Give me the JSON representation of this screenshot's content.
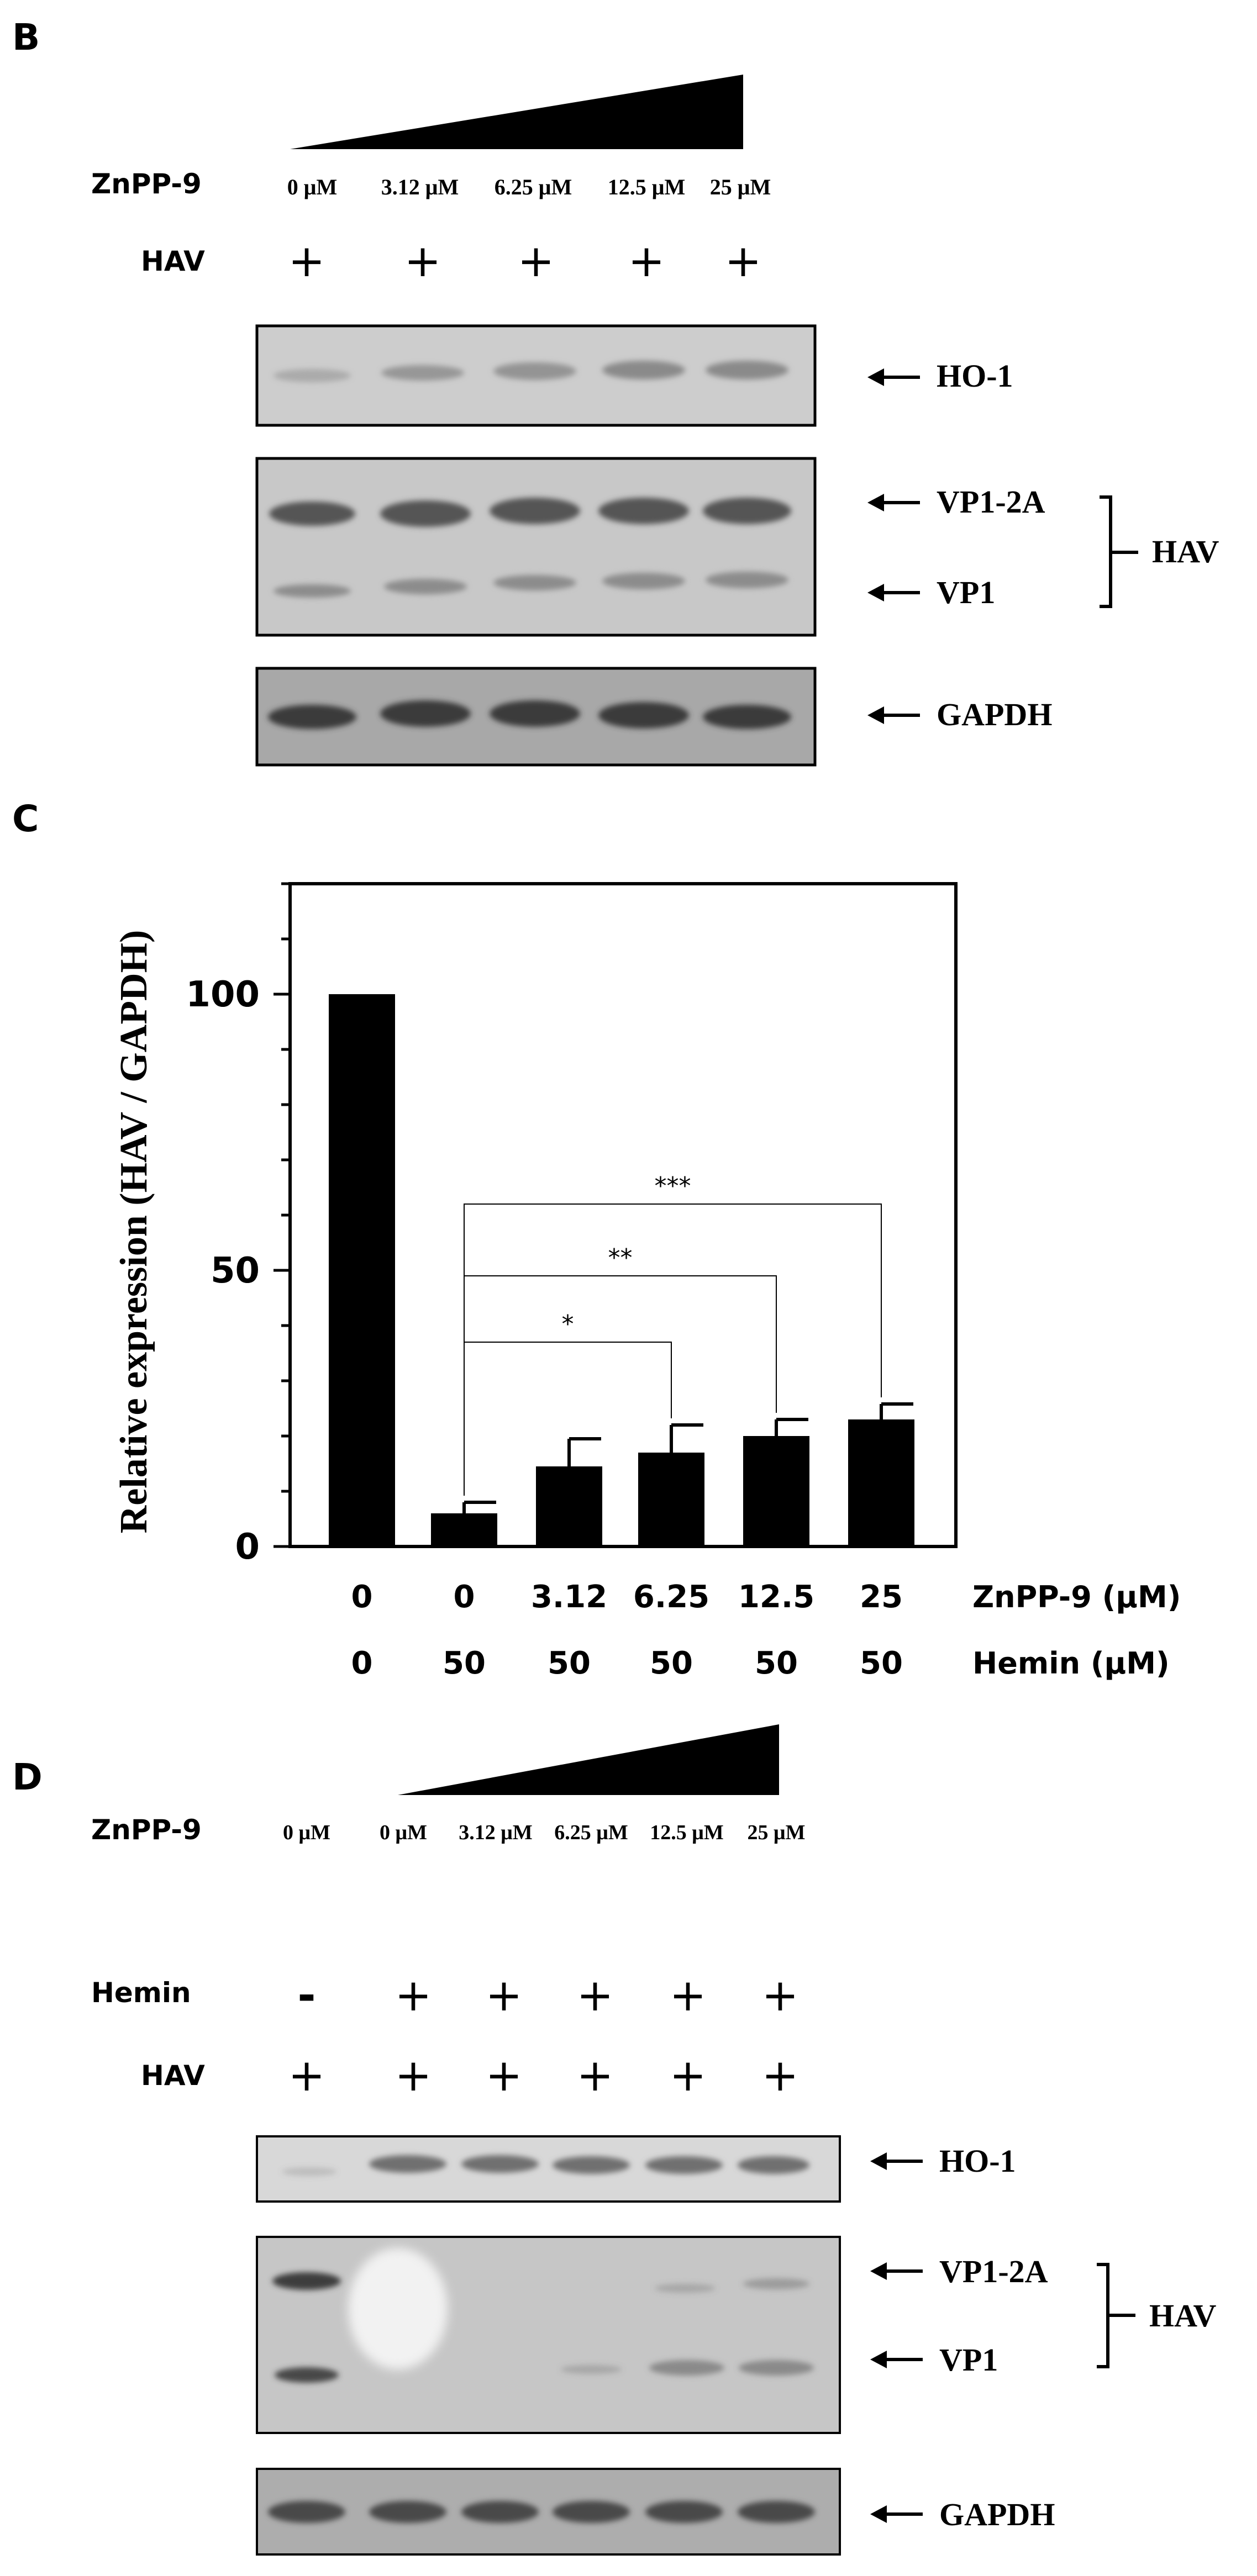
{
  "panel_b": {
    "letter": "B",
    "treatment_label": "ZnPP-9",
    "doses": [
      "0 μM",
      "3.12 μM",
      "6.25 μM",
      "12.5 μM",
      "25 μM"
    ],
    "hav_label": "HAV",
    "hav_signs": [
      "+",
      "+",
      "+",
      "+",
      "+"
    ],
    "blots": {
      "ho1": "HO-1",
      "vp1_2a": "VP1-2A",
      "vp1": "VP1",
      "hav_group": "HAV",
      "gapdh": "GAPDH"
    }
  },
  "panel_c": {
    "letter": "C",
    "chart_data": {
      "type": "bar",
      "ylabel": "Relative expression (HAV / GAPDH)",
      "xlabel": "",
      "ylim": [
        0,
        120
      ],
      "yticks": [
        0,
        50,
        100
      ],
      "categories": [
        "0 / 0",
        "0 / 50",
        "3.12 / 50",
        "6.25 / 50",
        "12.5 / 50",
        "25 / 50"
      ],
      "values": [
        100,
        6,
        14.5,
        17,
        20,
        23
      ],
      "errors": [
        0,
        2,
        5,
        5,
        3,
        2.8
      ],
      "bar_color": "#000000",
      "row_znpp": {
        "label": "ZnPP-9 (μM)",
        "values": [
          "0",
          "0",
          "3.12",
          "6.25",
          "12.5",
          "25"
        ]
      },
      "row_hemin": {
        "label": "Hemin (μM)",
        "values": [
          "0",
          "50",
          "50",
          "50",
          "50",
          "50"
        ]
      },
      "significance": [
        {
          "from": 1,
          "to": 3,
          "label": "*"
        },
        {
          "from": 1,
          "to": 4,
          "label": "**"
        },
        {
          "from": 1,
          "to": 5,
          "label": "***"
        }
      ]
    }
  },
  "panel_d": {
    "letter": "D",
    "treatment_label": "ZnPP-9",
    "doses": [
      "0 μM",
      "0 μM",
      "3.12 μM",
      "6.25 μM",
      "12.5 μM",
      "25 μM"
    ],
    "hemin_label": "Hemin",
    "hemin_signs": [
      "-",
      "+",
      "+",
      "+",
      "+",
      "+"
    ],
    "hav_label": "HAV",
    "hav_signs": [
      "+",
      "+",
      "+",
      "+",
      "+",
      "+"
    ],
    "blots": {
      "ho1": "HO-1",
      "vp1_2a": "VP1-2A",
      "vp1": "VP1",
      "hav_group": "HAV",
      "gapdh": "GAPDH"
    }
  }
}
